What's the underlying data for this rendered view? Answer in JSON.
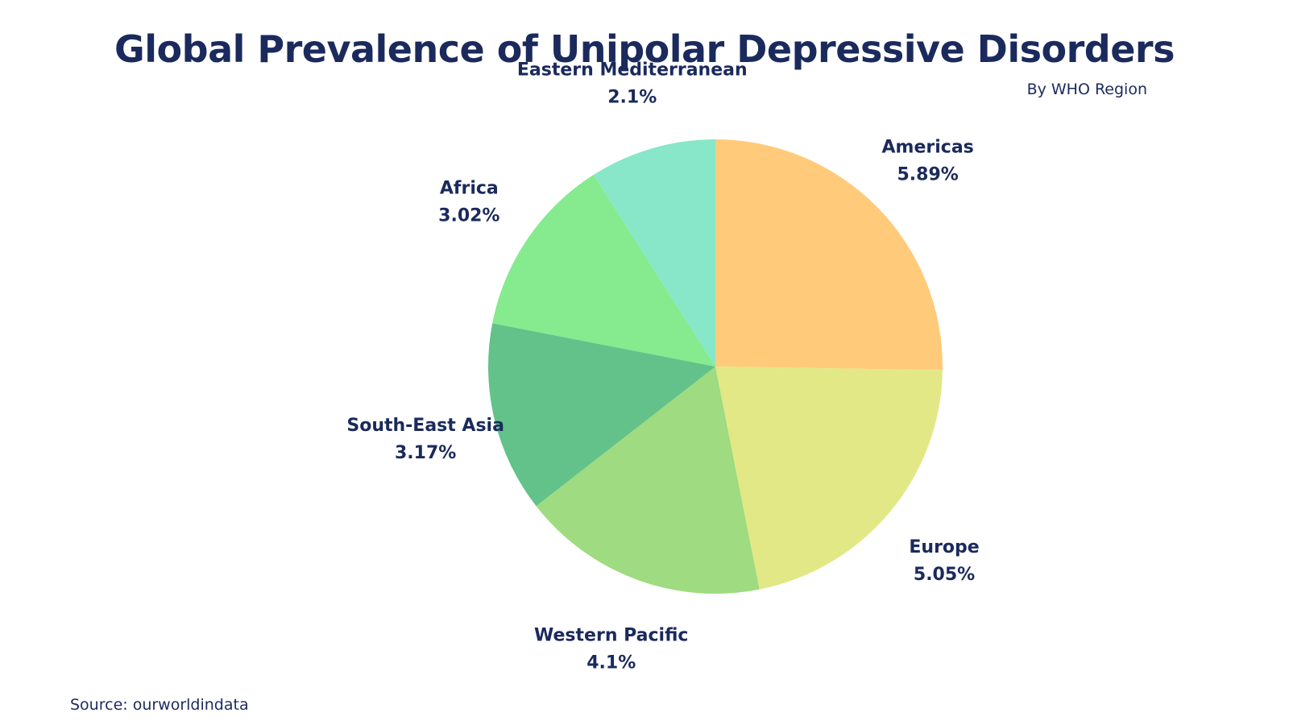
{
  "chart_data": {
    "type": "pie",
    "title": "Global Prevalence of Unipolar Depressive Disorders",
    "subtitle": "By WHO Region",
    "source": "Source: ourworldindata",
    "unit": "%",
    "slices": [
      {
        "name": "Americas",
        "value": 5.89,
        "label": "5.89%",
        "color": "#ffcb7a"
      },
      {
        "name": "Europe",
        "value": 5.05,
        "label": "5.05%",
        "color": "#e2e885"
      },
      {
        "name": "Western Pacific",
        "value": 4.1,
        "label": "4.1%",
        "color": "#9fdb80"
      },
      {
        "name": "South-East Asia",
        "value": 3.17,
        "label": "3.17%",
        "color": "#62c28a"
      },
      {
        "name": "Africa",
        "value": 3.02,
        "label": "3.02%",
        "color": "#86ea8f"
      },
      {
        "name": "Eastern Mediterranean",
        "value": 2.1,
        "label": "2.1%",
        "color": "#87e7c8"
      }
    ]
  }
}
